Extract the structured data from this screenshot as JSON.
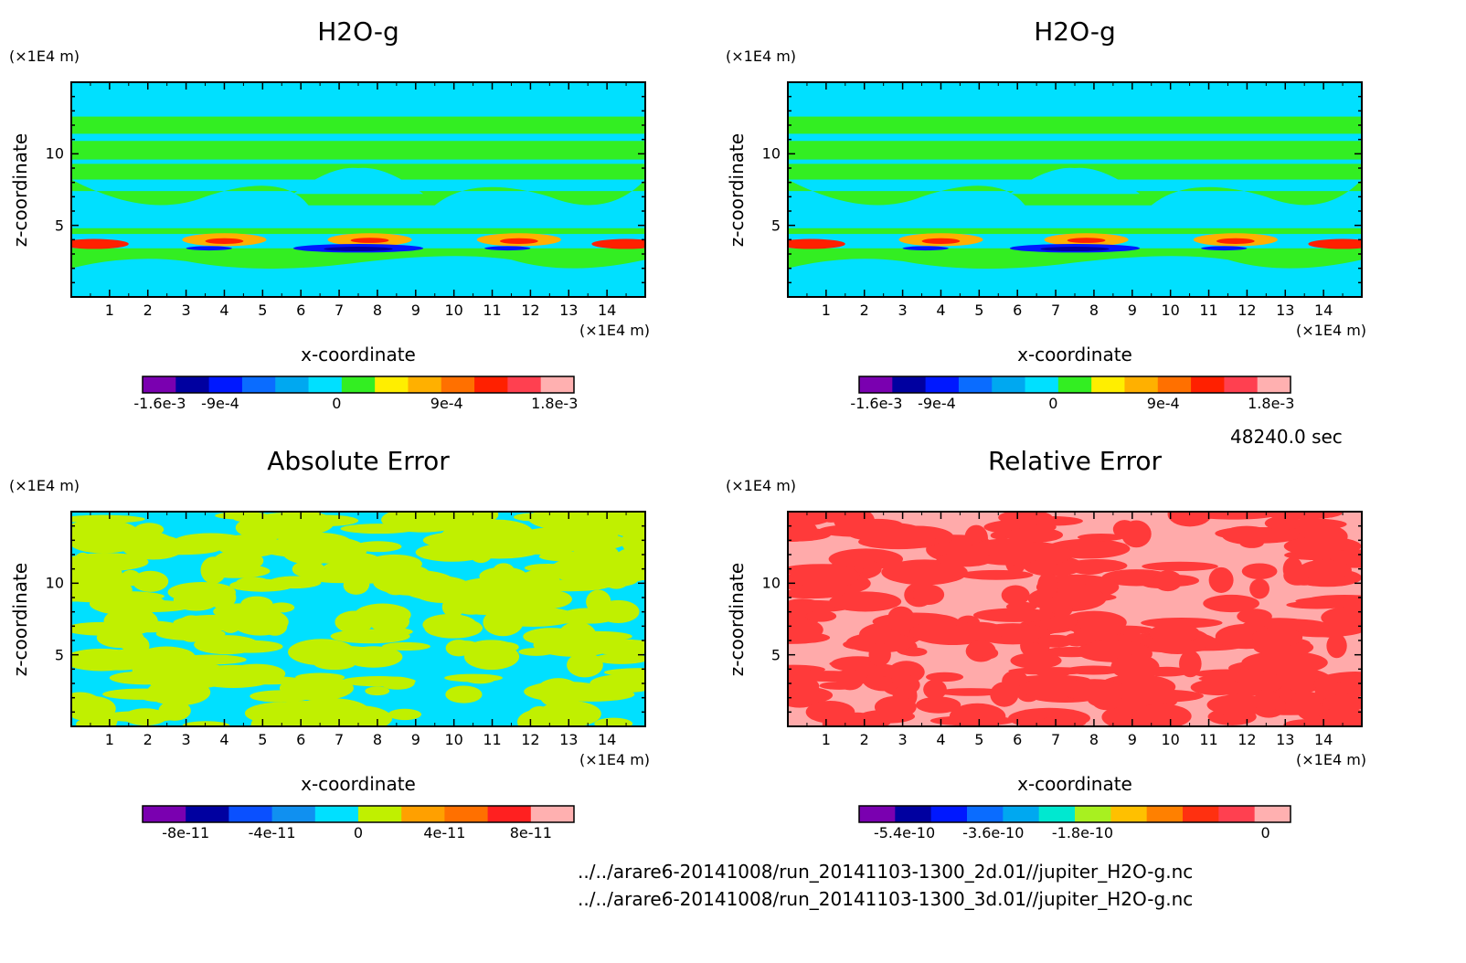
{
  "time_label": "48240.0 sec",
  "files": [
    "../../arare6-20141008/run_20141103-1300_2d.01//jupiter_H2O-g.nc",
    "../../arare6-20141008/run_20141103-1300_3d.01//jupiter_H2O-g.nc"
  ],
  "chart_data": [
    {
      "type": "heatmap",
      "title": "H2O-g",
      "xlabel": "x-coordinate",
      "ylabel": "z-coordinate",
      "x_unit": "(×1E4 m)",
      "y_unit": "(×1E4 m)",
      "xlim": [
        0,
        15
      ],
      "ylim": [
        0,
        15
      ],
      "x_ticks": [
        "1",
        "2",
        "3",
        "4",
        "5",
        "6",
        "7",
        "8",
        "9",
        "10",
        "11",
        "12",
        "13",
        "14"
      ],
      "y_ticks": [
        "5",
        "10"
      ],
      "colorbar": {
        "ticks": [
          "-1.6e-3",
          "-9e-4",
          "0",
          "9e-4",
          "1.8e-3"
        ],
        "colors": [
          "#7a00b0",
          "#0000a0",
          "#0018ff",
          "#0a6cff",
          "#00a8f0",
          "#00e0ff",
          "#33ee22",
          "#ffee00",
          "#ffb000",
          "#ff7000",
          "#ff2000",
          "#ff4050",
          "#ffb0b0"
        ]
      },
      "colors": {
        "background": "#00e0ff",
        "band": "#33ee22",
        "warm": "#ffb000",
        "hot": "#ff2000",
        "cold": "#0018ff",
        "core": "#0000a0"
      }
    },
    {
      "type": "heatmap",
      "title": "H2O-g",
      "xlabel": "x-coordinate",
      "ylabel": "z-coordinate",
      "x_unit": "(×1E4 m)",
      "y_unit": "(×1E4 m)",
      "xlim": [
        0,
        15
      ],
      "ylim": [
        0,
        15
      ],
      "x_ticks": [
        "1",
        "2",
        "3",
        "4",
        "5",
        "6",
        "7",
        "8",
        "9",
        "10",
        "11",
        "12",
        "13",
        "14"
      ],
      "y_ticks": [
        "5",
        "10"
      ],
      "colorbar": {
        "ticks": [
          "-1.6e-3",
          "-9e-4",
          "0",
          "9e-4",
          "1.8e-3"
        ],
        "colors": [
          "#7a00b0",
          "#0000a0",
          "#0018ff",
          "#0a6cff",
          "#00a8f0",
          "#00e0ff",
          "#33ee22",
          "#ffee00",
          "#ffb000",
          "#ff7000",
          "#ff2000",
          "#ff4050",
          "#ffb0b0"
        ]
      },
      "colors": {
        "background": "#00e0ff",
        "band": "#33ee22",
        "warm": "#ffb000",
        "hot": "#ff2000",
        "cold": "#0018ff",
        "core": "#0000a0"
      }
    },
    {
      "type": "heatmap",
      "title": "Absolute Error",
      "xlabel": "x-coordinate",
      "ylabel": "z-coordinate",
      "x_unit": "(×1E4 m)",
      "y_unit": "(×1E4 m)",
      "xlim": [
        0,
        15
      ],
      "ylim": [
        0,
        15
      ],
      "x_ticks": [
        "1",
        "2",
        "3",
        "4",
        "5",
        "6",
        "7",
        "8",
        "9",
        "10",
        "11",
        "12",
        "13",
        "14"
      ],
      "y_ticks": [
        "5",
        "10"
      ],
      "colorbar": {
        "ticks": [
          "-8e-11",
          "-4e-11",
          "0",
          "4e-11",
          "8e-11"
        ],
        "colors": [
          "#7a00b0",
          "#0000a0",
          "#0a50ff",
          "#1090f0",
          "#00e0ff",
          "#c0f000",
          "#ffa000",
          "#ff7000",
          "#ff2020",
          "#ffb0b0"
        ]
      },
      "colors": {
        "background": "#00e0ff",
        "patch": "#c0f000"
      }
    },
    {
      "type": "heatmap",
      "title": "Relative Error",
      "xlabel": "x-coordinate",
      "ylabel": "z-coordinate",
      "x_unit": "(×1E4 m)",
      "y_unit": "(×1E4 m)",
      "xlim": [
        0,
        15
      ],
      "ylim": [
        0,
        15
      ],
      "x_ticks": [
        "1",
        "2",
        "3",
        "4",
        "5",
        "6",
        "7",
        "8",
        "9",
        "10",
        "11",
        "12",
        "13",
        "14"
      ],
      "y_ticks": [
        "5",
        "10"
      ],
      "colorbar": {
        "ticks": [
          "-5.4e-10",
          "-3.6e-10",
          "-1.8e-10",
          "0"
        ],
        "colors": [
          "#7a00b0",
          "#0000a0",
          "#0018ff",
          "#0a6cff",
          "#00a8f0",
          "#00e8d0",
          "#a8f020",
          "#ffc000",
          "#ff8000",
          "#ff3010",
          "#ff4050",
          "#ffb0b0"
        ]
      },
      "colors": {
        "background": "#ffaaaa",
        "patch": "#ff3a3a"
      }
    }
  ]
}
